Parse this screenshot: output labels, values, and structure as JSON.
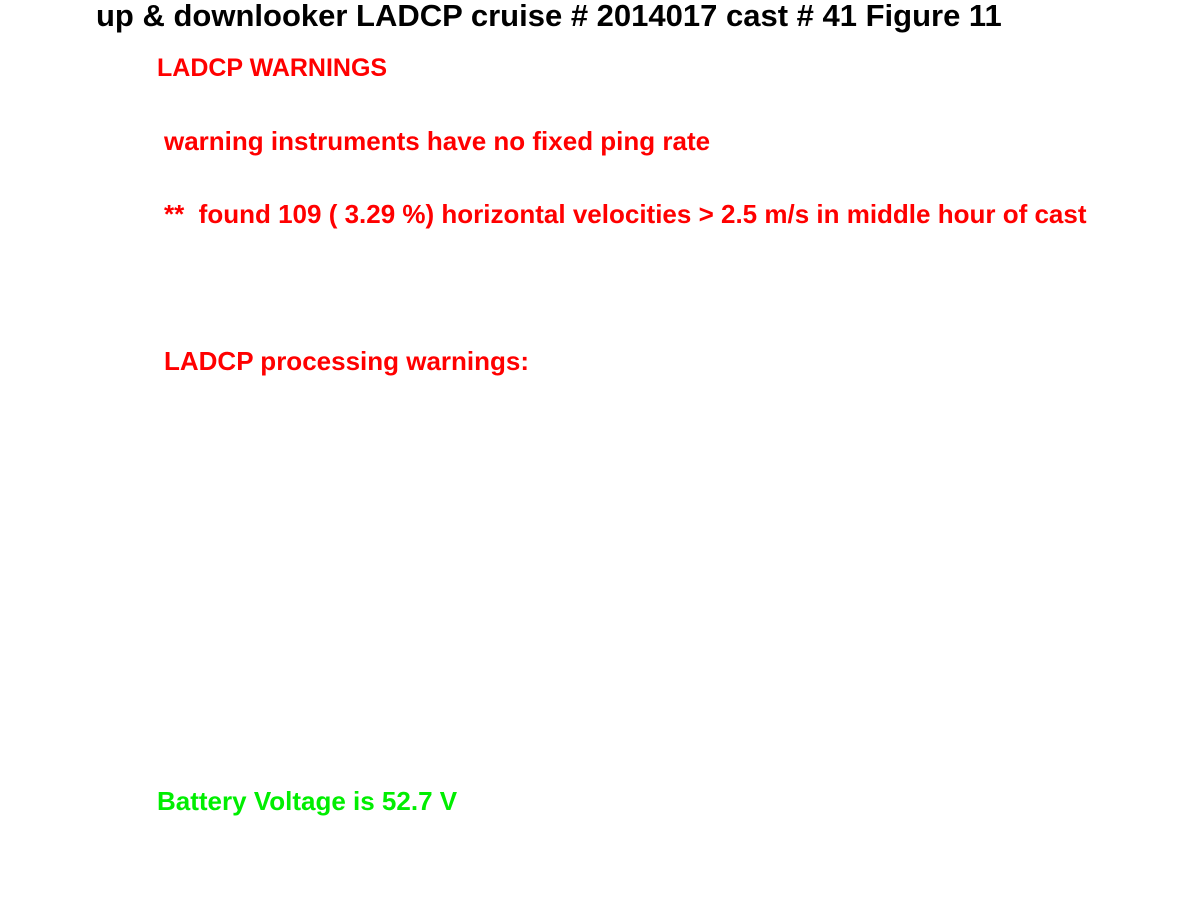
{
  "title": "up & downlooker LADCP cruise # 2014017 cast # 41 Figure 11",
  "warnings": {
    "heading": "LADCP WARNINGS",
    "items": [
      "warning instruments have no fixed ping rate",
      "**  found 109 ( 3.29 %) horizontal velocities > 2.5 m/s in middle hour of cast"
    ]
  },
  "processing": {
    "heading": "LADCP processing warnings:"
  },
  "battery": {
    "text": "Battery Voltage is 52.7 V"
  },
  "colors": {
    "title": "#000000",
    "warning": "#ff0000",
    "battery": "#00ee00"
  }
}
